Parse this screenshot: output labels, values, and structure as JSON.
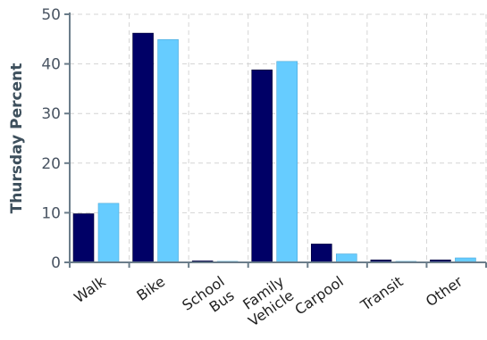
{
  "chart_data": {
    "type": "bar",
    "title": "",
    "xlabel": "",
    "ylabel": "Thursday Percent",
    "ylim": [
      0,
      50
    ],
    "yticks": [
      0,
      10,
      20,
      30,
      40,
      50
    ],
    "categories": [
      [
        "Walk"
      ],
      [
        "Bike"
      ],
      [
        "School",
        "Bus"
      ],
      [
        "Family",
        "Vehicle"
      ],
      [
        "Carpool"
      ],
      [
        "Transit"
      ],
      [
        "Other"
      ]
    ],
    "series": [
      {
        "values": [
          9.8,
          46.2,
          0.3,
          38.8,
          3.7,
          0.5,
          0.5
        ]
      },
      {
        "values": [
          11.9,
          44.9,
          0.2,
          40.5,
          1.7,
          0.2,
          0.9
        ]
      }
    ],
    "grid": true,
    "colors": {
      "series": [
        "#000066",
        "#66ccff"
      ],
      "grid": "#d4d4d4",
      "axis": "#6b7d8a"
    }
  }
}
